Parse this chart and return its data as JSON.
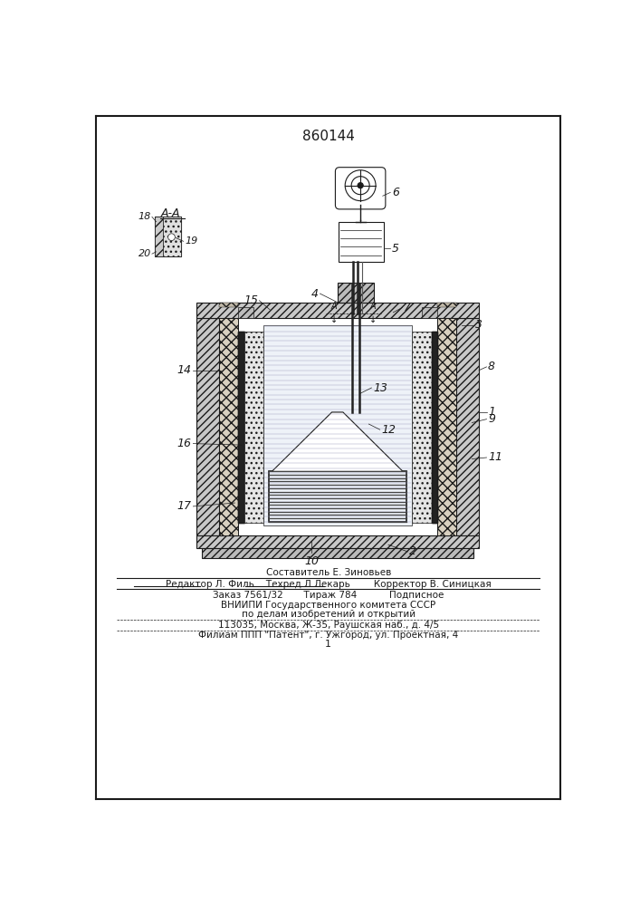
{
  "title": "860144",
  "bg_color": "#ffffff",
  "line_color": "#1a1a1a",
  "footer_lines": [
    "Составитель Е. Зиновьев",
    "Редактор Л. Филь    Техред Л.Лекарь        Корректор В. Синицкая",
    "Заказ 7561/32       Тираж 784           Подписное",
    "ВНИИПИ Государственного комитета СССР",
    "по делам изобретений и открытий",
    "113035, Москва, Ж-35, Раушская наб., д. 4/5",
    "Филиам ППП \"Патент\", г. Ужгород, ул. Проектная, 4"
  ]
}
